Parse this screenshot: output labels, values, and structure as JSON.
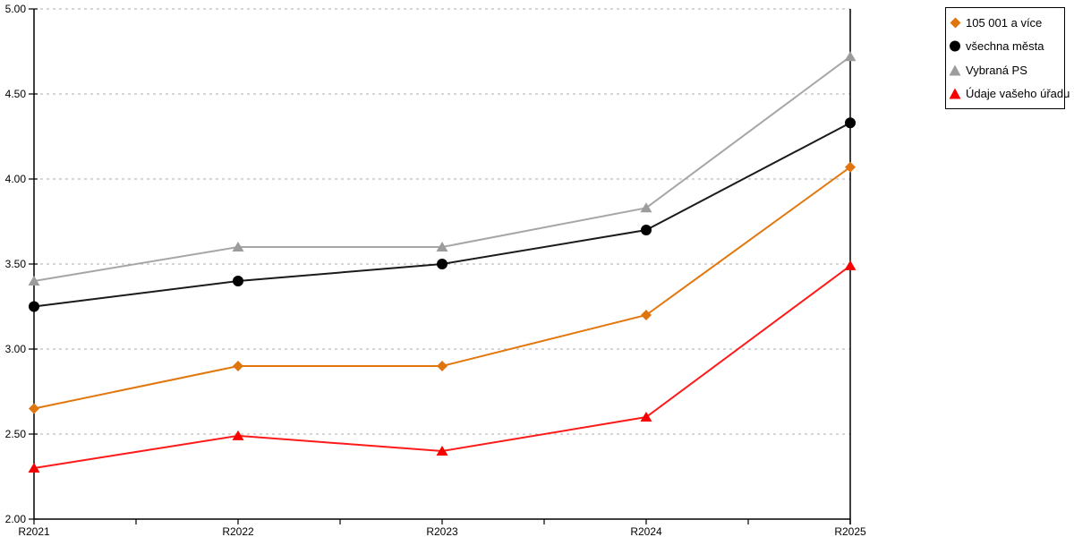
{
  "chart_data": {
    "type": "line",
    "title": "",
    "xlabel": "",
    "ylabel": "",
    "categories": [
      "R2021",
      "R2022",
      "R2023",
      "R2024",
      "R2025"
    ],
    "series": [
      {
        "name": "105 001 a více",
        "marker": "diamond",
        "color": "#E0750E",
        "line_color": "#E2770E",
        "values": [
          2.65,
          2.9,
          2.9,
          3.2,
          4.07
        ]
      },
      {
        "name": "všechna města",
        "marker": "circle",
        "color": "#000000",
        "line_color": "#1A1A1A",
        "values": [
          3.25,
          3.4,
          3.5,
          3.7,
          4.33
        ]
      },
      {
        "name": "Vybraná PS",
        "marker": "triangle",
        "color": "#9C9C9C",
        "line_color": "#A6A6A6",
        "values": [
          3.4,
          3.6,
          3.6,
          3.83,
          4.72
        ]
      },
      {
        "name": "Údaje vašeho úřadu",
        "marker": "triangle",
        "color": "#F90000",
        "line_color": "#FF1A1A",
        "values": [
          2.3,
          2.49,
          2.4,
          2.6,
          3.49
        ]
      }
    ],
    "ylim": [
      2.0,
      5.0
    ],
    "y_tick_step": 0.5,
    "y_tick_labels": [
      "2.00",
      "2.50",
      "3.00",
      "3.50",
      "4.00",
      "4.50",
      "5.00"
    ],
    "grid": "horizontal-dashed",
    "grid_color": "#ADADAD",
    "axis_color": "#000000",
    "legend_position": "outside-top-right"
  }
}
